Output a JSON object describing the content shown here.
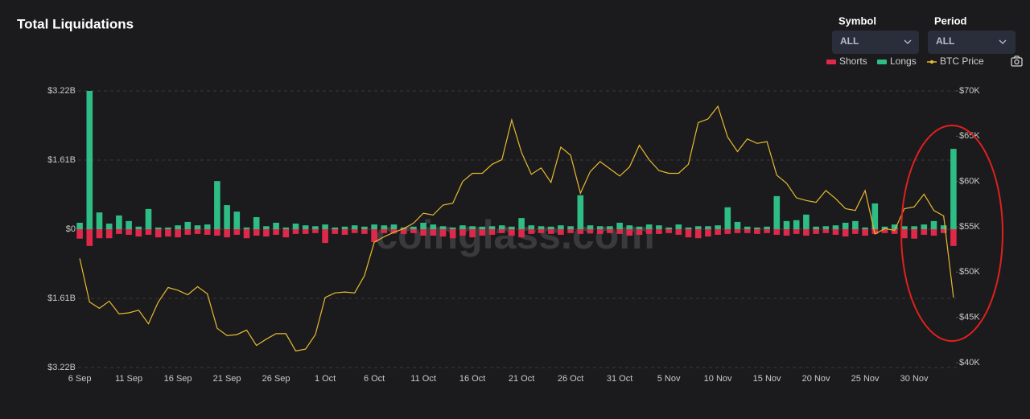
{
  "chart_data": {
    "type": "bar",
    "title": "Total Liquidations",
    "watermark": "coinglass.com",
    "categories": [
      "6 Sep",
      null,
      null,
      null,
      null,
      "11 Sep",
      null,
      null,
      null,
      null,
      "16 Sep",
      null,
      null,
      null,
      null,
      "21 Sep",
      null,
      null,
      null,
      null,
      "26 Sep",
      null,
      null,
      null,
      null,
      "1 Oct",
      null,
      null,
      null,
      null,
      "6 Oct",
      null,
      null,
      null,
      null,
      "11 Oct",
      null,
      null,
      null,
      null,
      "16 Oct",
      null,
      null,
      null,
      null,
      "21 Oct",
      null,
      null,
      null,
      null,
      "26 Oct",
      null,
      null,
      null,
      null,
      "31 Oct",
      null,
      null,
      null,
      null,
      "5 Nov",
      null,
      null,
      null,
      null,
      "10 Nov",
      null,
      null,
      null,
      null,
      "15 Nov",
      null,
      null,
      null,
      null,
      "20 Nov",
      null,
      null,
      null,
      null,
      "25 Nov",
      null,
      null,
      null,
      null,
      "30 Nov",
      null,
      null,
      null,
      null
    ],
    "series": [
      {
        "name": "Shorts",
        "type": "bar",
        "color": "#e0294a",
        "values": [
          -0.22,
          -0.39,
          -0.21,
          -0.21,
          -0.11,
          -0.13,
          -0.17,
          -0.13,
          -0.19,
          -0.17,
          -0.19,
          -0.13,
          -0.11,
          -0.13,
          -0.15,
          -0.19,
          -0.13,
          -0.21,
          -0.15,
          -0.17,
          -0.13,
          -0.19,
          -0.11,
          -0.11,
          -0.09,
          -0.32,
          -0.11,
          -0.13,
          -0.09,
          -0.11,
          -0.3,
          -0.09,
          -0.09,
          -0.11,
          -0.09,
          -0.15,
          -0.15,
          -0.17,
          -0.21,
          -0.15,
          -0.19,
          -0.15,
          -0.13,
          -0.09,
          -0.15,
          -0.19,
          -0.11,
          -0.09,
          -0.11,
          -0.13,
          -0.09,
          -0.11,
          -0.09,
          -0.11,
          -0.09,
          -0.11,
          -0.15,
          -0.13,
          -0.11,
          -0.11,
          -0.09,
          -0.13,
          -0.19,
          -0.21,
          -0.17,
          -0.13,
          -0.11,
          -0.09,
          -0.09,
          -0.11,
          -0.09,
          -0.13,
          -0.15,
          -0.11,
          -0.15,
          -0.11,
          -0.09,
          -0.13,
          -0.17,
          -0.11,
          -0.15,
          -0.11,
          -0.09,
          -0.11,
          -0.21,
          -0.22,
          -0.13,
          -0.15,
          -0.09,
          -0.39
        ]
      },
      {
        "name": "Longs",
        "type": "bar",
        "color": "#2ebd85",
        "values": [
          0.15,
          3.22,
          0.39,
          0.13,
          0.32,
          0.19,
          0.06,
          0.47,
          0.04,
          0.04,
          0.09,
          0.17,
          0.09,
          0.11,
          1.12,
          0.56,
          0.41,
          0.04,
          0.28,
          0.07,
          0.15,
          0.04,
          0.13,
          0.09,
          0.07,
          0.11,
          0.04,
          0.06,
          0.09,
          0.06,
          0.11,
          0.09,
          0.11,
          0.04,
          0.06,
          0.15,
          0.11,
          0.07,
          0.04,
          0.09,
          0.07,
          0.06,
          0.07,
          0.09,
          0.06,
          0.26,
          0.09,
          0.07,
          0.06,
          0.09,
          0.07,
          0.79,
          0.09,
          0.07,
          0.07,
          0.15,
          0.09,
          0.06,
          0.11,
          0.09,
          0.04,
          0.11,
          0.04,
          0.07,
          0.07,
          0.09,
          0.51,
          0.17,
          0.06,
          0.04,
          0.06,
          0.77,
          0.19,
          0.21,
          0.34,
          0.06,
          0.07,
          0.09,
          0.15,
          0.19,
          0.04,
          0.6,
          0.06,
          0.11,
          0.07,
          0.07,
          0.11,
          0.19,
          0.09,
          1.87
        ]
      },
      {
        "name": "BTC Price",
        "type": "line",
        "axis": "y2",
        "color": "#e8b931",
        "values": [
          51.5,
          46.7,
          46.0,
          46.8,
          45.4,
          45.5,
          45.8,
          44.3,
          46.7,
          48.3,
          48.0,
          47.5,
          48.4,
          47.6,
          43.8,
          43.0,
          43.1,
          43.6,
          41.9,
          42.6,
          43.2,
          43.2,
          41.3,
          41.5,
          43.1,
          47.2,
          47.7,
          47.8,
          47.7,
          49.6,
          53.3,
          53.9,
          54.4,
          54.8,
          55.4,
          56.5,
          56.3,
          57.4,
          57.6,
          60.0,
          60.9,
          60.9,
          61.9,
          62.4,
          66.8,
          63.2,
          60.8,
          61.5,
          59.9,
          63.8,
          62.9,
          58.7,
          61.1,
          62.2,
          61.4,
          60.6,
          61.6,
          64.0,
          62.4,
          61.2,
          60.9,
          60.9,
          61.9,
          66.5,
          66.9,
          68.3,
          64.9,
          63.3,
          64.7,
          64.2,
          64.4,
          60.7,
          59.8,
          58.2,
          57.9,
          57.7,
          59.0,
          58.1,
          57.0,
          56.8,
          59.0,
          54.2,
          54.8,
          54.6,
          57.0,
          57.2,
          58.6,
          56.8,
          56.2,
          47.2
        ]
      }
    ],
    "ylim": [
      -3.22,
      3.22
    ],
    "yticks": [
      {
        "value": 3.22,
        "label": "$3.22B"
      },
      {
        "value": 1.61,
        "label": "$1.61B"
      },
      {
        "value": 0,
        "label": "$0"
      },
      {
        "value": -1.61,
        "label": "$1.61B"
      },
      {
        "value": -3.22,
        "label": "$3.22B"
      }
    ],
    "y2lim": [
      40,
      70
    ],
    "y2ticks": [
      {
        "value": 70,
        "label": "$70K"
      },
      {
        "value": 65,
        "label": "$65K"
      },
      {
        "value": 60,
        "label": "$60K"
      },
      {
        "value": 55,
        "label": "$55K"
      },
      {
        "value": 50,
        "label": "$50K"
      },
      {
        "value": 45,
        "label": "$45K"
      },
      {
        "value": 40,
        "label": "$40K"
      }
    ],
    "grid": true,
    "legend": "top-right"
  },
  "controls": [
    {
      "label": "Symbol",
      "value": "ALL"
    },
    {
      "label": "Period",
      "value": "ALL"
    }
  ]
}
